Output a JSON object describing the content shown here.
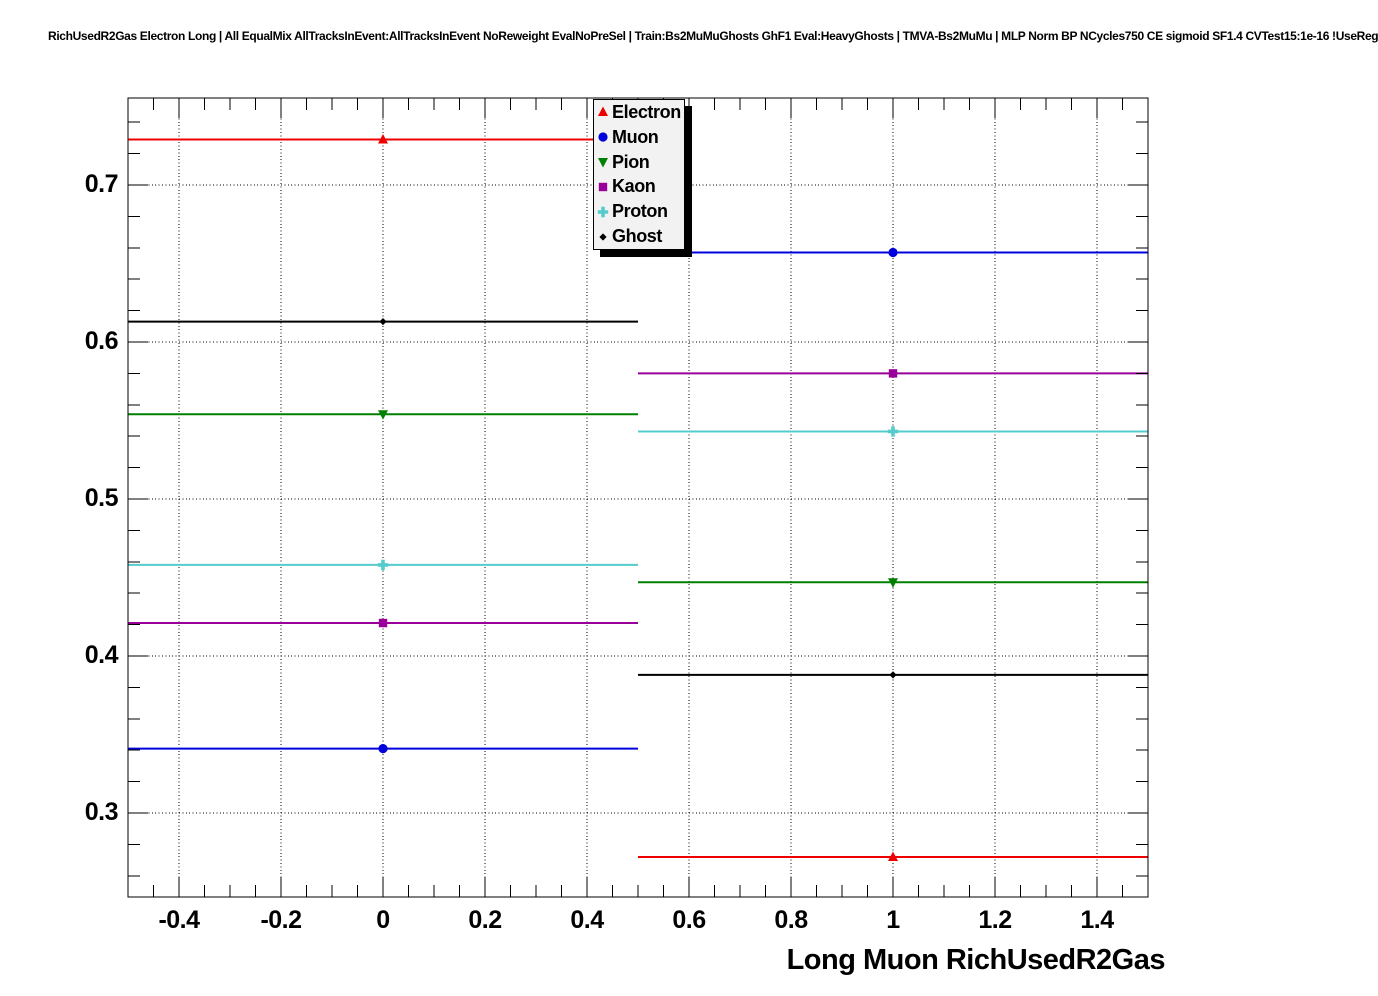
{
  "window": {
    "header_title": "RichUsedR2Gas Electron Long | All EqualMix AllTracksInEvent:AllTracksInEvent NoReweight EvalNoPreSel | Train:Bs2MuMuGhosts GhF1 Eval:HeavyGhosts | TMVA-Bs2MuMu | MLP Norm BP NCycles750 CE sigmoid SF1.4 CVTest15:1e-16 !UseReg"
  },
  "chart_data": {
    "type": "line",
    "title": "RichUsedR2Gas Electron Long | All EqualMix AllTracksInEvent:AllTracksInEvent NoReweight EvalNoPreSel | Train:Bs2MuMuGhosts GhF1 Eval:HeavyGhosts | TMVA-Bs2MuMu | MLP Norm BP NCycles750 CE sigmoid SF1.4 CVTest15:1e-16 !UseReg",
    "xlabel": "Long Muon RichUsedR2Gas",
    "ylabel": "",
    "x": [
      0,
      1
    ],
    "xerr": 0.5,
    "series": [
      {
        "name": "Electron",
        "marker": "triangle-up",
        "color": "#ee0000",
        "values": [
          0.729,
          0.272
        ]
      },
      {
        "name": "Muon",
        "marker": "circle",
        "color": "#0000dd",
        "values": [
          0.341,
          0.657
        ]
      },
      {
        "name": "Pion",
        "marker": "triangle-down",
        "color": "#008000",
        "values": [
          0.554,
          0.447
        ]
      },
      {
        "name": "Kaon",
        "marker": "square",
        "color": "#990099",
        "values": [
          0.421,
          0.58
        ]
      },
      {
        "name": "Proton",
        "marker": "plus",
        "color": "#55cccc",
        "values": [
          0.458,
          0.543
        ]
      },
      {
        "name": "Ghost",
        "marker": "diamond-small",
        "color": "#000000",
        "values": [
          0.613,
          0.388
        ]
      }
    ],
    "xlim": [
      -0.5,
      1.5
    ],
    "ylim": [
      0.2465,
      0.7554
    ],
    "xticks": {
      "values": [
        -0.4,
        -0.2,
        0,
        0.2,
        0.4,
        0.6,
        0.8,
        1,
        1.2,
        1.4
      ],
      "labels": [
        "-0.4",
        "-0.2",
        "0",
        "0.2",
        "0.4",
        "0.6",
        "0.8",
        "1",
        "1.2",
        "1.4"
      ],
      "minor_step": 0.05
    },
    "yticks": {
      "values": [
        0.3,
        0.4,
        0.5,
        0.6,
        0.7
      ],
      "labels": [
        "0.3",
        "0.4",
        "0.5",
        "0.6",
        "0.7"
      ],
      "minor_step": 0.02
    },
    "grid": "dotted-at-major-ticks",
    "legend_position": "top-right-inside",
    "legend_entries": [
      "Electron",
      "Muon",
      "Pion",
      "Kaon",
      "Proton",
      "Ghost"
    ]
  }
}
